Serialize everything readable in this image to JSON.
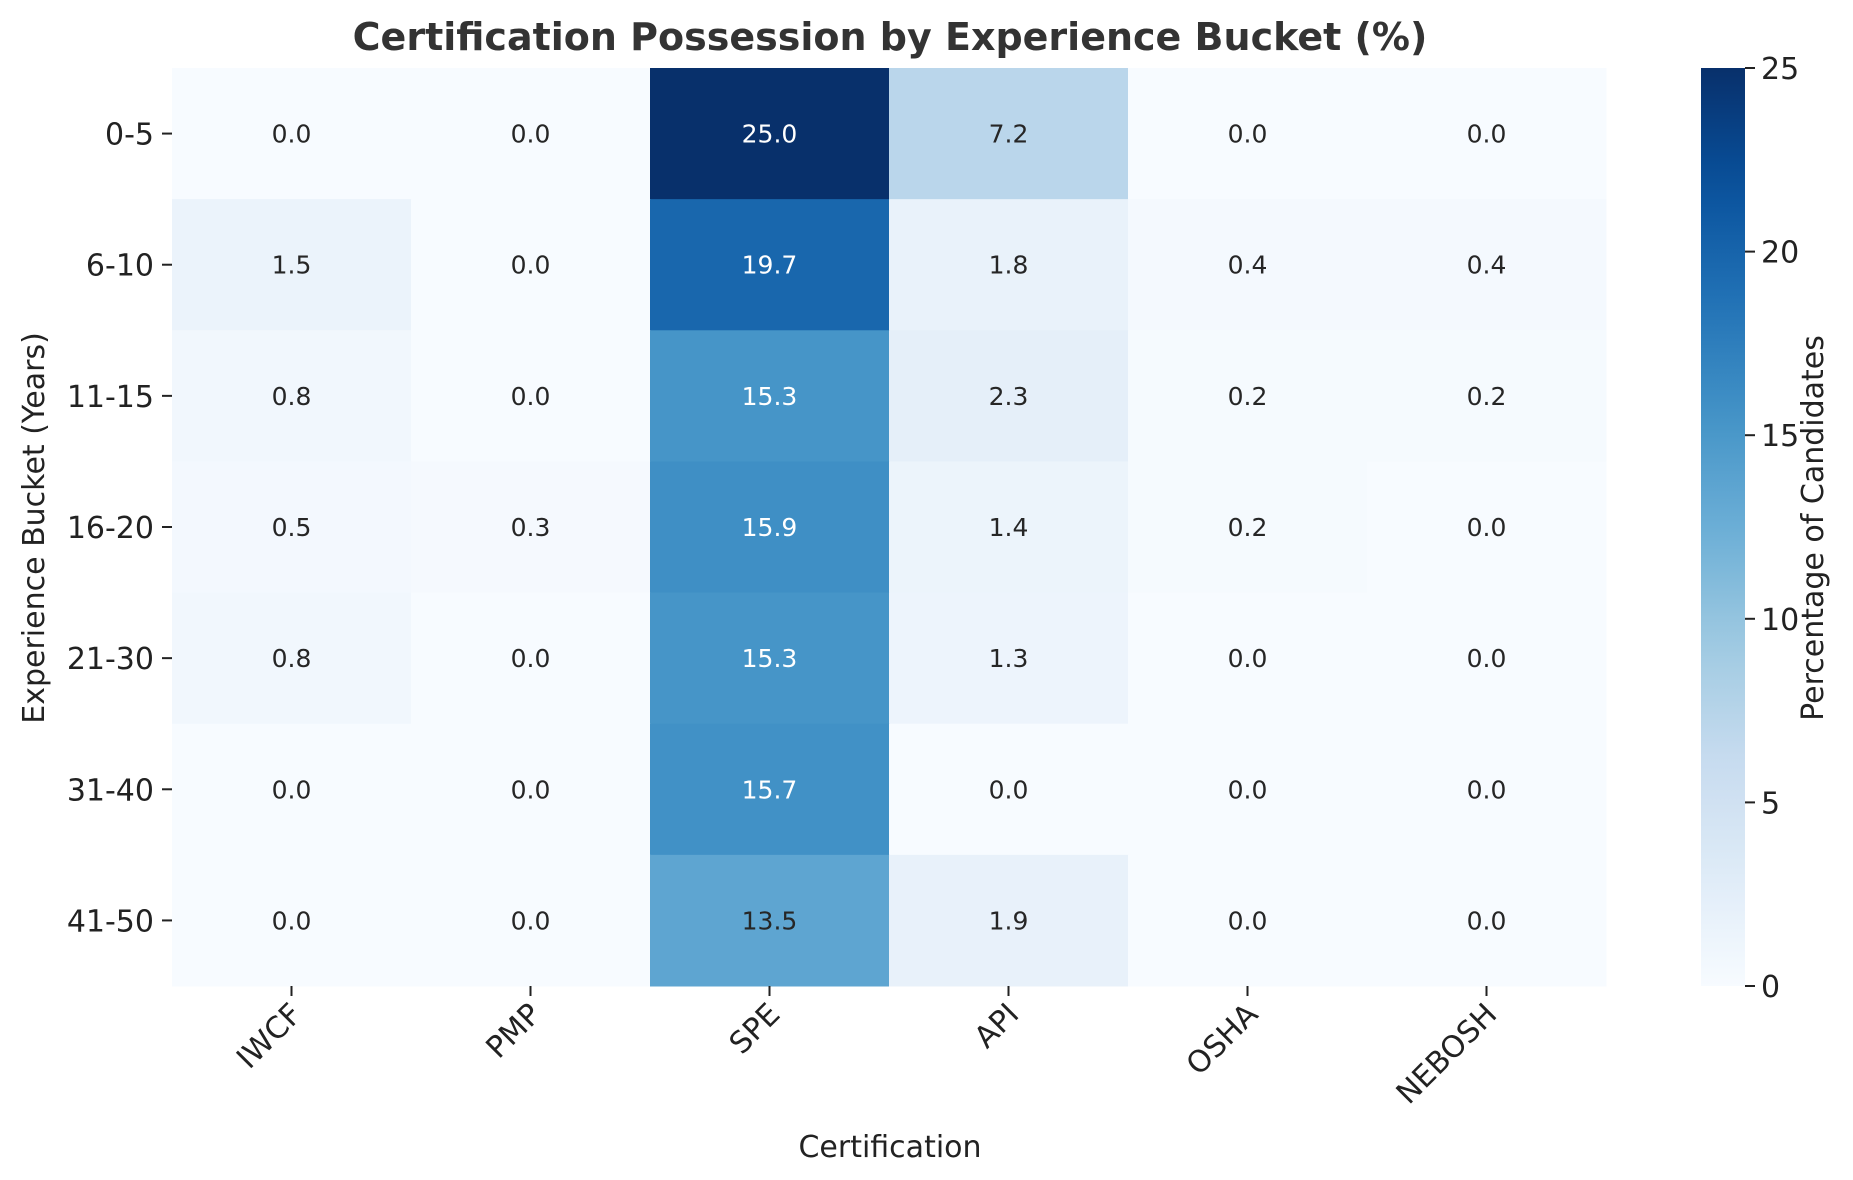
{
  "chart_data": {
    "type": "heatmap",
    "title": "Certification Possession by Experience Bucket (%)",
    "xlabel": "Certification",
    "ylabel": "Experience Bucket (Years)",
    "colorbar_label": "Percentage of Candidates",
    "colormap": "Blues",
    "x_categories": [
      "IWCF",
      "PMP",
      "SPE",
      "API",
      "OSHA",
      "NEBOSH"
    ],
    "y_categories": [
      "0-5",
      "6-10",
      "11-15",
      "16-20",
      "21-30",
      "31-40",
      "41-50"
    ],
    "values": [
      [
        0.0,
        0.0,
        25.0,
        7.2,
        0.0,
        0.0
      ],
      [
        1.5,
        0.0,
        19.7,
        1.8,
        0.4,
        0.4
      ],
      [
        0.8,
        0.0,
        15.3,
        2.3,
        0.2,
        0.2
      ],
      [
        0.5,
        0.3,
        15.9,
        1.4,
        0.2,
        0.0
      ],
      [
        0.8,
        0.0,
        15.3,
        1.3,
        0.0,
        0.0
      ],
      [
        0.0,
        0.0,
        15.7,
        0.0,
        0.0,
        0.0
      ],
      [
        0.0,
        0.0,
        13.5,
        1.9,
        0.0,
        0.0
      ]
    ],
    "value_format": "0.0",
    "color_range": [
      0,
      25
    ],
    "colorbar_ticks": [
      0,
      5,
      10,
      15,
      20,
      25
    ]
  }
}
